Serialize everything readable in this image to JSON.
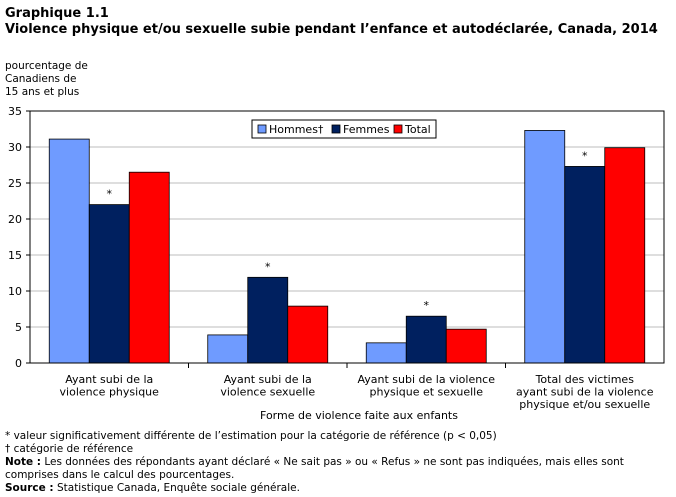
{
  "header": {
    "label": "Graphique 1.1",
    "title": "Violence physique et/ou sexuelle subie pendant l’enfance et autodéclarée, Canada, 2014"
  },
  "colors": {
    "Hommes": "#6f9bff",
    "Femmes": "#00205f",
    "Total": "#ff0000"
  },
  "chart_data": {
    "type": "bar",
    "title": "Violence physique et/ou sexuelle subie pendant l’enfance et autodéclarée, Canada, 2014",
    "ylabel": "pourcentage de\nCanadiens de\n15 ans et plus",
    "xlabel": "Forme de violence faite aux enfants",
    "ylim": [
      0,
      35
    ],
    "yticks": [
      "0",
      "5",
      "10",
      "15",
      "20",
      "25",
      "30",
      "35"
    ],
    "categories": [
      "Ayant subi de la\nviolence physique",
      "Ayant subi de la\nviolence sexuelle",
      "Ayant subi de la violence\nphysique et sexuelle",
      "Total des victimes\nayant subi de la violence\nphysique et/ou sexuelle"
    ],
    "series": [
      {
        "name": "Hommes†",
        "key": "Hommes",
        "values": [
          31.1,
          3.9,
          2.8,
          32.3
        ]
      },
      {
        "name": "Femmes",
        "key": "Femmes",
        "values": [
          22.0,
          11.9,
          6.5,
          27.3
        ]
      },
      {
        "name": "Total",
        "key": "Total",
        "values": [
          26.5,
          7.9,
          4.7,
          29.9
        ]
      }
    ],
    "significance_markers": [
      {
        "series": "Femmes",
        "category_index": 0,
        "marker": "*"
      },
      {
        "series": "Femmes",
        "category_index": 1,
        "marker": "*"
      },
      {
        "series": "Femmes",
        "category_index": 2,
        "marker": "*"
      },
      {
        "series": "Femmes",
        "category_index": 3,
        "marker": "*"
      }
    ],
    "legend_position": "top-center",
    "grid": true
  },
  "notes": {
    "sig": "* valeur significativement différente de l’estimation pour la catégorie de référence (p < 0,05)",
    "ref": "† catégorie de référence",
    "note_label": "Note :",
    "note_text": " Les données des répondants ayant déclaré « Ne sait pas » ou « Refus » ne sont pas indiquées, mais elles sont comprises dans le calcul des pourcentages.",
    "source_label": "Source :",
    "source_text": " Statistique Canada, Enquête sociale générale."
  }
}
